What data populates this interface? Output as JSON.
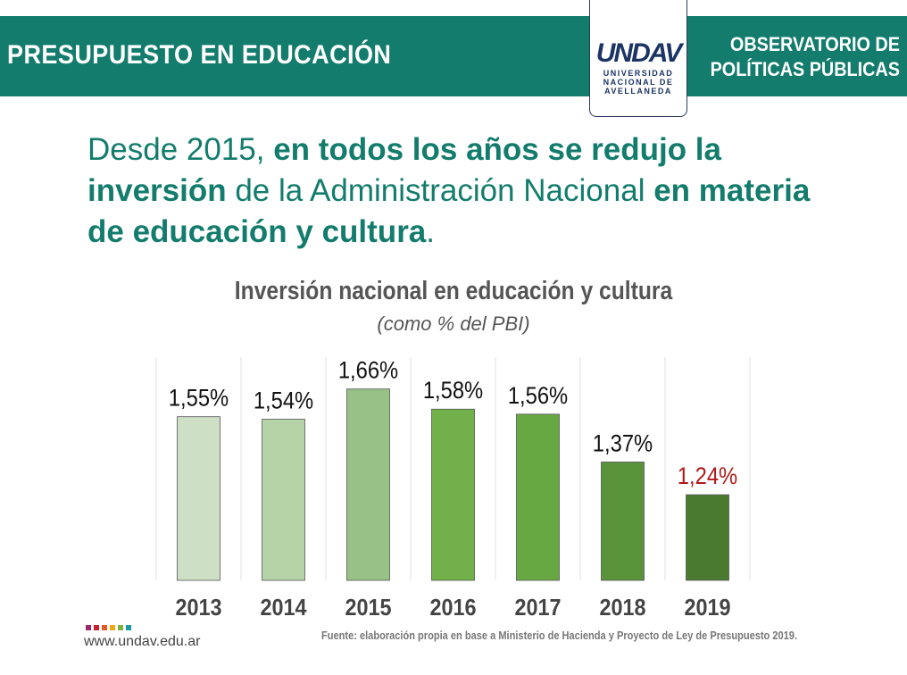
{
  "header": {
    "title": "PRESUPUESTO EN EDUCACIÓN",
    "observatorio_line1": "OBSERVATORIO DE",
    "observatorio_line2": "POLÍTICAS PÚBLICAS",
    "logo": {
      "mark": "UNDAV",
      "line1": "UNIVERSIDAD",
      "line2": "NACIONAL DE",
      "line3": "AVELLANEDA"
    },
    "color": "#137c6c"
  },
  "headline": {
    "p1": "Desde 2015, ",
    "b1": "en todos los años se redujo la inversión",
    "p2": " de la Administración Nacional ",
    "b2": "en materia de educación y cultura",
    "p3": "."
  },
  "chart_data": {
    "type": "bar",
    "title": "Inversión nacional en educación y cultura",
    "subtitle": "(como % del PBI)",
    "categories": [
      "2013",
      "2014",
      "2015",
      "2016",
      "2017",
      "2018",
      "2019"
    ],
    "values": [
      1.55,
      1.54,
      1.66,
      1.58,
      1.56,
      1.37,
      1.24
    ],
    "labels": [
      "1,55%",
      "1,54%",
      "1,66%",
      "1,58%",
      "1,56%",
      "1,37%",
      "1,24%"
    ],
    "colors": [
      "#cde0c6",
      "#b5d3a6",
      "#98c285",
      "#72b04a",
      "#68a843",
      "#5a943a",
      "#4a7a30"
    ],
    "label_colors": [
      "#111111",
      "#111111",
      "#111111",
      "#111111",
      "#111111",
      "#111111",
      "#b01818"
    ],
    "ylim": [
      0.9,
      1.75
    ],
    "grid": false
  },
  "footer": {
    "url": "www.undav.edu.ar",
    "source": "Fuente: elaboración propia en base a Ministerio de Hacienda y Proyecto de Ley de Presupuesto 2019.",
    "dot_colors": [
      "#9b2a6e",
      "#c8202f",
      "#e35a22",
      "#f2a71b",
      "#7bb241",
      "#1a9aa8"
    ]
  }
}
